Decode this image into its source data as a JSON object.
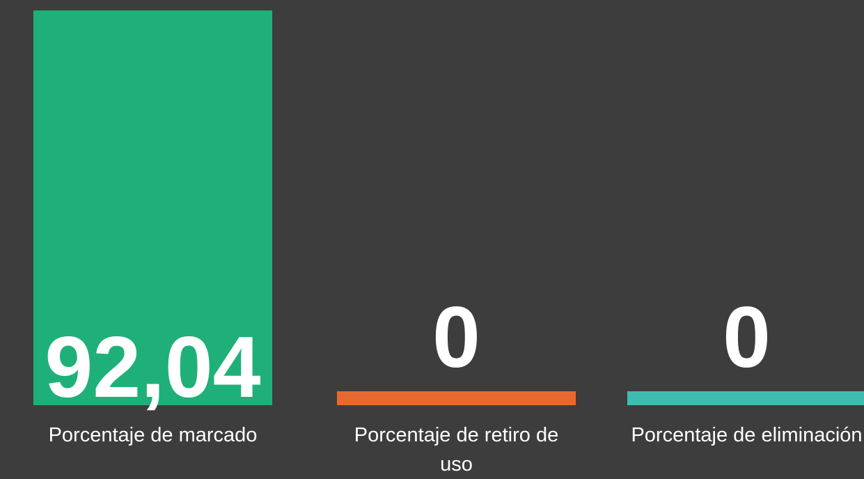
{
  "chart_data": {
    "type": "bar",
    "categories": [
      "Porcentaje de marcado",
      "Porcentaje de retiro de uso",
      "Porcentaje de eliminación"
    ],
    "values": [
      92.04,
      0,
      0
    ],
    "value_labels": [
      "92,04",
      "0",
      "0"
    ],
    "colors": [
      "#1fb07a",
      "#e8692f",
      "#3fbcb0"
    ]
  }
}
